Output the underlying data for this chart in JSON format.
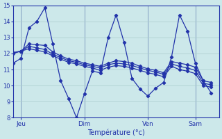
{
  "background_color": "#cce8ea",
  "grid_color": "#aacccc",
  "line_color": "#2233aa",
  "xlabel": "Température (°c)",
  "ylim": [
    8,
    15
  ],
  "yticks": [
    8,
    9,
    10,
    11,
    12,
    13,
    14,
    15
  ],
  "day_labels": [
    "Jeu",
    "Dim",
    "Ven",
    "Sam"
  ],
  "day_positions": [
    1,
    9,
    17,
    23
  ],
  "xlim": [
    0,
    26
  ],
  "series": [
    [
      11.4,
      11.7,
      13.6,
      14.0,
      14.85,
      12.6,
      10.3,
      9.2,
      8.0,
      9.5,
      10.9,
      10.8,
      13.0,
      14.4,
      12.7,
      10.45,
      9.8,
      9.35,
      9.85,
      10.2,
      11.8,
      14.4,
      13.4,
      11.4,
      10.3,
      9.55
    ],
    [
      12.0,
      12.15,
      12.6,
      12.55,
      12.5,
      12.1,
      11.85,
      11.65,
      11.55,
      11.4,
      11.3,
      11.2,
      11.4,
      11.55,
      11.5,
      11.4,
      11.2,
      11.05,
      10.95,
      10.8,
      11.5,
      11.4,
      11.3,
      11.15,
      10.3,
      10.2
    ],
    [
      12.05,
      12.15,
      12.45,
      12.35,
      12.25,
      11.95,
      11.75,
      11.55,
      11.45,
      11.3,
      11.2,
      11.1,
      11.3,
      11.4,
      11.35,
      11.25,
      11.1,
      10.95,
      10.85,
      10.7,
      11.35,
      11.2,
      11.1,
      10.95,
      10.15,
      10.05
    ],
    [
      12.05,
      12.15,
      12.3,
      12.2,
      12.1,
      11.85,
      11.65,
      11.45,
      11.35,
      11.2,
      11.1,
      10.95,
      11.15,
      11.25,
      11.2,
      11.1,
      10.95,
      10.8,
      10.7,
      10.55,
      11.2,
      11.0,
      10.9,
      10.75,
      10.0,
      9.9
    ]
  ]
}
